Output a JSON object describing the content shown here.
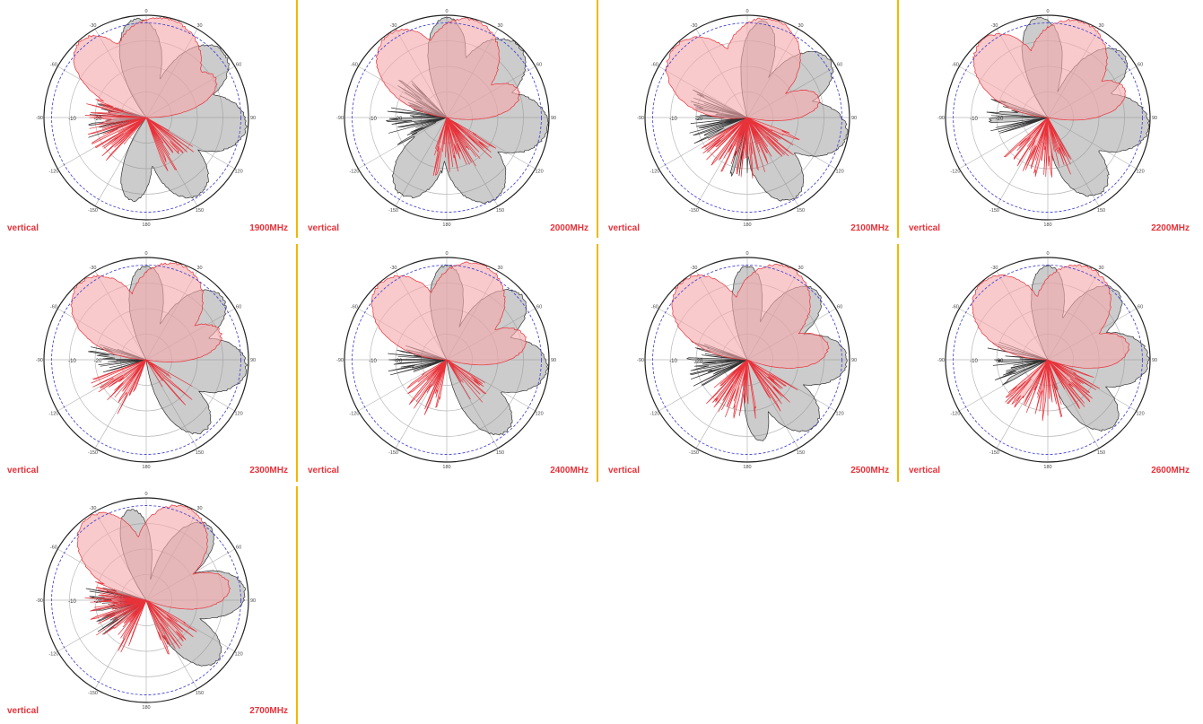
{
  "colors": {
    "horizontal_fill": "#f4a9ad",
    "vertical_fill": "#8f8f8f",
    "horizontal_line": "#e8323a",
    "vertical_line": "#333333",
    "reference_ring": "#3a3ad0",
    "grid": "#b9b9b9",
    "divider": "#f2b705",
    "label": "#e8323a"
  },
  "chart_data": [
    {
      "type": "polar",
      "left_label": "vertical",
      "right_label": "1900MHz",
      "rlim": [
        -40,
        0
      ],
      "radial_ticks": [
        "-10",
        "-20"
      ],
      "angle_labels": [
        "0",
        "30",
        "60",
        "90",
        "120",
        "150",
        "180",
        "-150",
        "-120",
        "-90",
        "-60",
        "-30"
      ],
      "reference_ring_db": -3,
      "seed": 11,
      "series": [
        {
          "lobes": [
            [
              -40,
              -0.6,
              34
            ],
            [
              12,
              -0.5,
              60
            ],
            [
              60,
              -9,
              30
            ]
          ],
          "spikes": [
            [
              220,
              290
            ],
            [
              120,
              160
            ]
          ]
        },
        {
          "lobes": [
            [
              -5,
              -1.2,
              28
            ],
            [
              50,
              -0.4,
              34
            ],
            [
              95,
              -0.8,
              38
            ],
            [
              145,
              -3.5,
              36
            ],
            [
              -170,
              -7,
              25
            ]
          ],
          "spikes": [
            [
              250,
              290
            ]
          ]
        }
      ]
    },
    {
      "type": "polar",
      "left_label": "vertical",
      "right_label": "2000MHz",
      "rlim": [
        -40,
        0
      ],
      "radial_ticks": [
        "-10",
        "-20"
      ],
      "angle_labels": [
        "0",
        "30",
        "60",
        "90",
        "120",
        "150",
        "180",
        "-150",
        "-120",
        "-90",
        "-60",
        "-30"
      ],
      "reference_ring_db": -3,
      "seed": 23,
      "series": [
        {
          "lobes": [
            [
              -35,
              -0.4,
              42
            ],
            [
              15,
              -0.5,
              50
            ],
            [
              70,
              -10,
              30
            ]
          ],
          "spikes": [
            [
              120,
              200
            ]
          ]
        },
        {
          "lobes": [
            [
              0,
              -1,
              25
            ],
            [
              45,
              -0.3,
              38
            ],
            [
              95,
              -0.5,
              40
            ],
            [
              150,
              -3,
              40
            ],
            [
              -150,
              -5,
              35
            ]
          ],
          "spikes": [
            [
              240,
              320
            ],
            [
              170,
              220
            ]
          ]
        }
      ]
    },
    {
      "type": "polar",
      "left_label": "vertical",
      "right_label": "2100MHz",
      "rlim": [
        -40,
        0
      ],
      "radial_ticks": [
        "-10",
        "-20"
      ],
      "angle_labels": [
        "0",
        "30",
        "60",
        "90",
        "120",
        "150",
        "180",
        "-150",
        "-120",
        "-90",
        "-60",
        "-30"
      ],
      "reference_ring_db": -3,
      "seed": 37,
      "series": [
        {
          "lobes": [
            [
              -45,
              -0.5,
              46
            ],
            [
              15,
              -0.4,
              50
            ],
            [
              75,
              -11,
              28
            ]
          ],
          "spikes": [
            [
              110,
              240
            ]
          ]
        },
        {
          "lobes": [
            [
              10,
              -2,
              22
            ],
            [
              55,
              -0.8,
              32
            ],
            [
              100,
              -0.6,
              36
            ],
            [
              150,
              -3.5,
              34
            ]
          ],
          "spikes": [
            [
              240,
              300
            ],
            [
              170,
              200
            ]
          ]
        }
      ]
    },
    {
      "type": "polar",
      "left_label": "vertical",
      "right_label": "2200MHz",
      "rlim": [
        -40,
        0
      ],
      "radial_ticks": [
        "-10",
        "-20"
      ],
      "angle_labels": [
        "0",
        "30",
        "60",
        "90",
        "120",
        "150",
        "180",
        "-150",
        "-120",
        "-90",
        "-60",
        "-30"
      ],
      "reference_ring_db": -3,
      "seed": 41,
      "series": [
        {
          "lobes": [
            [
              -40,
              -0.5,
              40
            ],
            [
              20,
              -0.3,
              52
            ],
            [
              70,
              -8,
              30
            ]
          ],
          "spikes": [
            [
              150,
              230
            ]
          ]
        },
        {
          "lobes": [
            [
              -5,
              -0.8,
              26
            ],
            [
              50,
              -1.5,
              30
            ],
            [
              95,
              -0.4,
              38
            ],
            [
              145,
              -4,
              34
            ]
          ],
          "spikes": [
            [
              250,
              290
            ]
          ]
        }
      ]
    },
    {
      "type": "polar",
      "left_label": "vertical",
      "right_label": "2300MHz",
      "rlim": [
        -40,
        0
      ],
      "radial_ticks": [
        "-10",
        "-20"
      ],
      "angle_labels": [
        "0",
        "30",
        "60",
        "90",
        "120",
        "150",
        "180",
        "-150",
        "-120",
        "-90",
        "-60",
        "-30"
      ],
      "reference_ring_db": -3,
      "seed": 53,
      "series": [
        {
          "lobes": [
            [
              -40,
              -0.4,
              42
            ],
            [
              20,
              -0.6,
              48
            ],
            [
              70,
              -9,
              30
            ]
          ],
          "spikes": [
            [
              200,
              250
            ],
            [
              120,
              150
            ]
          ]
        },
        {
          "lobes": [
            [
              0,
              -3.5,
              25
            ],
            [
              50,
              -1.6,
              32
            ],
            [
              95,
              -0.7,
              36
            ],
            [
              140,
              -4,
              30
            ]
          ],
          "spikes": [
            [
              250,
              290
            ]
          ]
        }
      ]
    },
    {
      "type": "polar",
      "left_label": "vertical",
      "right_label": "2400MHz",
      "rlim": [
        -40,
        0
      ],
      "radial_ticks": [
        "-10",
        "-20"
      ],
      "angle_labels": [
        "0",
        "30",
        "60",
        "90",
        "120",
        "150",
        "180",
        "-150",
        "-120",
        "-90",
        "-60",
        "-30"
      ],
      "reference_ring_db": -3,
      "seed": 67,
      "series": [
        {
          "lobes": [
            [
              -40,
              -0.5,
              42
            ],
            [
              20,
              -0.4,
              50
            ],
            [
              75,
              -8,
              30
            ]
          ],
          "spikes": [
            [
              190,
              240
            ],
            [
              120,
              150
            ]
          ]
        },
        {
          "lobes": [
            [
              0,
              -3.2,
              24
            ],
            [
              50,
              -1.4,
              32
            ],
            [
              95,
              -0.6,
              36
            ],
            [
              140,
              -3.5,
              30
            ]
          ],
          "spikes": [
            [
              250,
              290
            ]
          ]
        }
      ]
    },
    {
      "type": "polar",
      "left_label": "vertical",
      "right_label": "2500MHz",
      "rlim": [
        -40,
        0
      ],
      "radial_ticks": [
        "-10",
        "-20"
      ],
      "angle_labels": [
        "0",
        "30",
        "60",
        "90",
        "120",
        "150",
        "180",
        "-150",
        "-120",
        "-90",
        "-60",
        "-30"
      ],
      "reference_ring_db": -3,
      "seed": 71,
      "series": [
        {
          "lobes": [
            [
              -40,
              -0.3,
              42
            ],
            [
              25,
              -0.5,
              50
            ],
            [
              80,
              -8,
              30
            ]
          ],
          "spikes": [
            [
              170,
              230
            ],
            [
              120,
              150
            ]
          ]
        },
        {
          "lobes": [
            [
              0,
              -3.5,
              22
            ],
            [
              45,
              -1.8,
              30
            ],
            [
              90,
              -1,
              34
            ],
            [
              135,
              -3,
              32
            ],
            [
              170,
              -8,
              20
            ]
          ],
          "spikes": [
            [
              240,
              290
            ]
          ]
        }
      ]
    },
    {
      "type": "polar",
      "left_label": "vertical",
      "right_label": "2600MHz",
      "rlim": [
        -40,
        0
      ],
      "radial_ticks": [
        "-10",
        "-20"
      ],
      "angle_labels": [
        "0",
        "30",
        "60",
        "90",
        "120",
        "150",
        "180",
        "-150",
        "-120",
        "-90",
        "-60",
        "-30"
      ],
      "reference_ring_db": -3,
      "seed": 83,
      "series": [
        {
          "lobes": [
            [
              -40,
              -0.5,
              44
            ],
            [
              25,
              -0.6,
              50
            ],
            [
              80,
              -8,
              30
            ]
          ],
          "spikes": [
            [
              160,
              230
            ],
            [
              110,
              150
            ]
          ]
        },
        {
          "lobes": [
            [
              0,
              -3.3,
              24
            ],
            [
              45,
              -1.8,
              30
            ],
            [
              90,
              -0.6,
              36
            ],
            [
              135,
              -3.5,
              32
            ]
          ],
          "spikes": [
            [
              240,
              290
            ]
          ]
        }
      ]
    },
    {
      "type": "polar",
      "left_label": "vertical",
      "right_label": "2700MHz",
      "rlim": [
        -40,
        0
      ],
      "radial_ticks": [
        "-10",
        "-20"
      ],
      "angle_labels": [
        "0",
        "30",
        "60",
        "90",
        "120",
        "150",
        "180",
        "-150",
        "-120",
        "-90",
        "-60",
        "-30"
      ],
      "reference_ring_db": -3,
      "seed": 97,
      "series": [
        {
          "lobes": [
            [
              -35,
              -0.6,
              40
            ],
            [
              25,
              -0.5,
              46
            ],
            [
              80,
              -7,
              30
            ]
          ],
          "spikes": [
            [
              200,
              290
            ],
            [
              120,
              160
            ]
          ]
        },
        {
          "lobes": [
            [
              -10,
              -4,
              22
            ],
            [
              40,
              -2,
              28
            ],
            [
              85,
              -1.2,
              32
            ],
            [
              130,
              -3.5,
              30
            ]
          ],
          "spikes": [
            [
              230,
              290
            ]
          ]
        }
      ]
    }
  ]
}
